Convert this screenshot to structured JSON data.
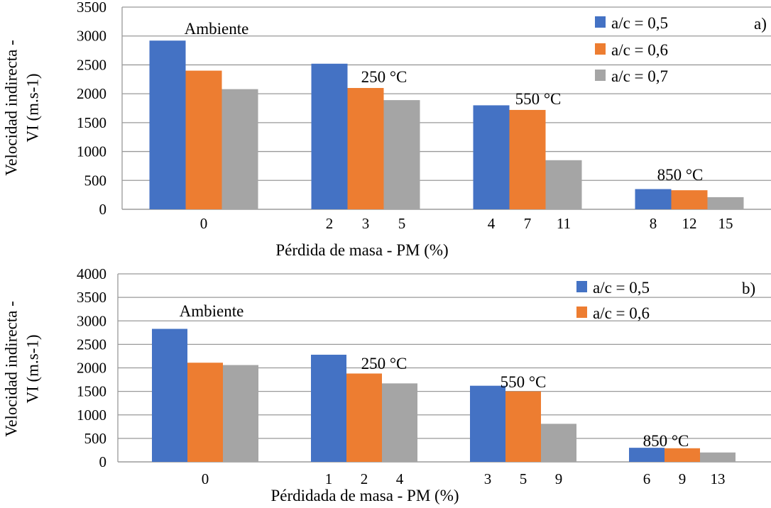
{
  "chart_data": [
    {
      "type": "bar",
      "panel_label": "a)",
      "xlabel": "Pérdida de masa - PM (%)",
      "ylabel_lines": [
        "Velocidad indirecta -",
        "VI (m.s-1)"
      ],
      "ylim": [
        0,
        3500
      ],
      "yticks": [
        0,
        500,
        1000,
        1500,
        2000,
        2500,
        3000,
        3500
      ],
      "grid": true,
      "legend_position": "top-right",
      "groups": [
        {
          "annotation": "Ambiente",
          "tick_labels": [
            "0"
          ]
        },
        {
          "annotation": "250 °C",
          "tick_labels": [
            "2",
            "3",
            "5"
          ]
        },
        {
          "annotation": "550 °C",
          "tick_labels": [
            "4",
            "7",
            "11"
          ]
        },
        {
          "annotation": "850 °C",
          "tick_labels": [
            "8",
            "12",
            "15"
          ]
        }
      ],
      "series": [
        {
          "name": "a/c = 0,5",
          "color": "#4472C4",
          "values": [
            2920,
            2520,
            1800,
            350
          ]
        },
        {
          "name": "a/c = 0,6",
          "color": "#ED7D31",
          "values": [
            2400,
            2100,
            1720,
            330
          ]
        },
        {
          "name": "a/c = 0,7",
          "color": "#A5A5A5",
          "values": [
            2080,
            1890,
            850,
            210
          ]
        }
      ]
    },
    {
      "type": "bar",
      "panel_label": "b)",
      "xlabel": "Pérdidada de masa - PM (%)",
      "ylabel_lines": [
        "Velocidad indirecta -",
        "VI  (m.s-1)"
      ],
      "ylim": [
        0,
        4000
      ],
      "yticks": [
        0,
        500,
        1000,
        1500,
        2000,
        2500,
        3000,
        3500,
        4000
      ],
      "grid": true,
      "legend_position": "top-right",
      "groups": [
        {
          "annotation": "Ambiente",
          "tick_labels": [
            "0"
          ]
        },
        {
          "annotation": "250 °C",
          "tick_labels": [
            "1",
            "2",
            "4"
          ]
        },
        {
          "annotation": "550 °C",
          "tick_labels": [
            "3",
            "5",
            "9"
          ]
        },
        {
          "annotation": "850 °C",
          "tick_labels": [
            "6",
            "9",
            "13"
          ]
        }
      ],
      "series": [
        {
          "name": "a/c = 0,5",
          "color": "#4472C4",
          "values": [
            2830,
            2280,
            1620,
            300
          ]
        },
        {
          "name": "a/c = 0,6",
          "color": "#ED7D31",
          "values": [
            2110,
            1880,
            1500,
            290
          ]
        },
        {
          "color": "#A5A5A5",
          "values": [
            2060,
            1670,
            810,
            200
          ]
        }
      ]
    }
  ]
}
